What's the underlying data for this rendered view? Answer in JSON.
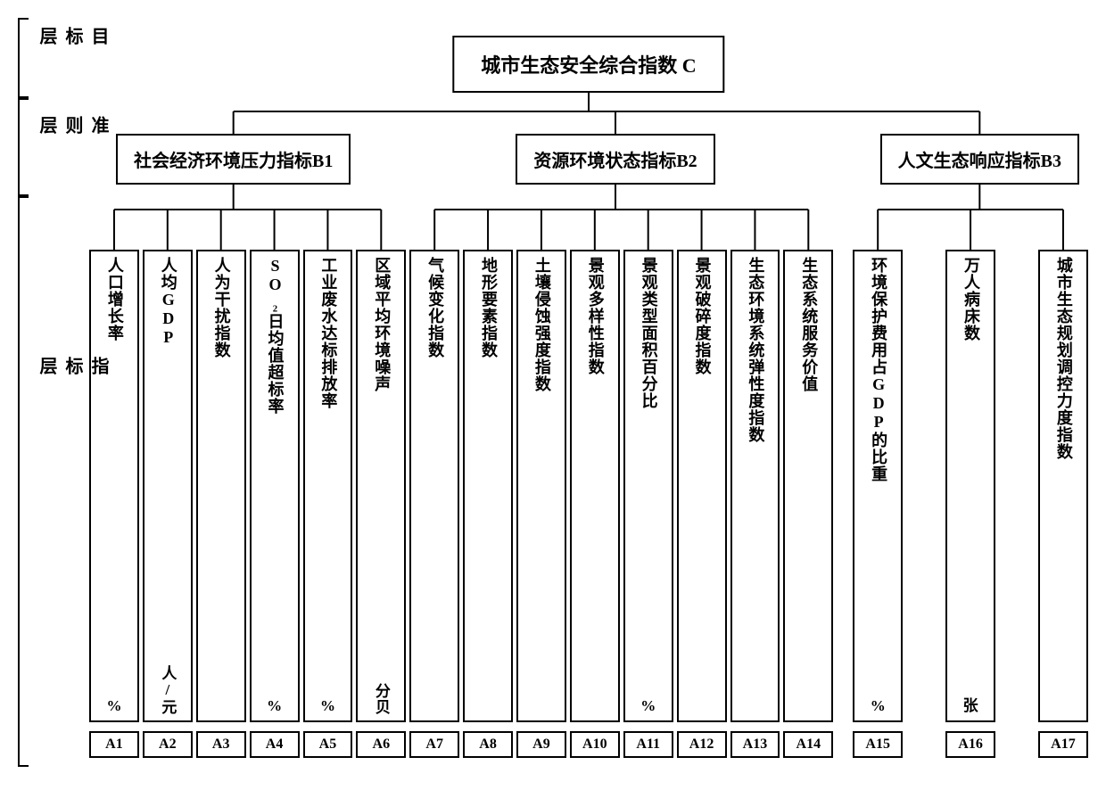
{
  "layers": {
    "target": "目标层",
    "criteria": "准则层",
    "indicator": "指标层"
  },
  "top": {
    "label": "城市生态安全综合指数 C"
  },
  "mid": [
    {
      "code": "B1",
      "label": "社会经济环境压力指标B1"
    },
    {
      "code": "B2",
      "label": "资源环境状态指标B2"
    },
    {
      "code": "B3",
      "label": "人文生态响应指标B3"
    }
  ],
  "indicators": [
    {
      "code": "A1",
      "label": "人口增长率",
      "unit": "%",
      "unit_vert": false
    },
    {
      "code": "A2",
      "label": "人均GDP",
      "unit": "人/元",
      "unit_vert": true
    },
    {
      "code": "A3",
      "label": "人为干扰指数",
      "unit": "",
      "unit_vert": false
    },
    {
      "code": "A4",
      "label": "SO₂日均值超标率",
      "unit": "%",
      "unit_vert": false
    },
    {
      "code": "A5",
      "label": "工业废水达标排放率",
      "unit": "%",
      "unit_vert": false
    },
    {
      "code": "A6",
      "label": "区域平均环境噪声",
      "unit": "分贝",
      "unit_vert": true
    },
    {
      "code": "A7",
      "label": "气候变化指数",
      "unit": "",
      "unit_vert": false
    },
    {
      "code": "A8",
      "label": "地形要素指数",
      "unit": "",
      "unit_vert": false
    },
    {
      "code": "A9",
      "label": "土壤侵蚀强度指数",
      "unit": "",
      "unit_vert": false
    },
    {
      "code": "A10",
      "label": "景观多样性指数",
      "unit": "",
      "unit_vert": false
    },
    {
      "code": "A11",
      "label": "景观类型面积百分比",
      "unit": "%",
      "unit_vert": false
    },
    {
      "code": "A12",
      "label": "景观破碎度指数",
      "unit": "",
      "unit_vert": false
    },
    {
      "code": "A13",
      "label": "生态环境系统弹性度指数",
      "unit": "",
      "unit_vert": false
    },
    {
      "code": "A14",
      "label": "生态系统服务价值",
      "unit": "",
      "unit_vert": false
    },
    {
      "code": "A15",
      "label": "环境保护费用占GDP的比重",
      "unit": "%",
      "unit_vert": false
    },
    {
      "code": "A16",
      "label": "万人病床数",
      "unit": "张",
      "unit_vert": false
    },
    {
      "code": "A17",
      "label": "城市生态规划调控力度指数",
      "unit": "",
      "unit_vert": false
    }
  ],
  "groups": {
    "B1": [
      "A1",
      "A2",
      "A3",
      "A4",
      "A5",
      "A6"
    ],
    "B2": [
      "A7",
      "A8",
      "A9",
      "A10",
      "A11",
      "A12",
      "A13",
      "A14"
    ],
    "B3": [
      "A15",
      "A16",
      "A17"
    ]
  },
  "colors": {
    "line": "#000000",
    "bg": "#ffffff"
  }
}
